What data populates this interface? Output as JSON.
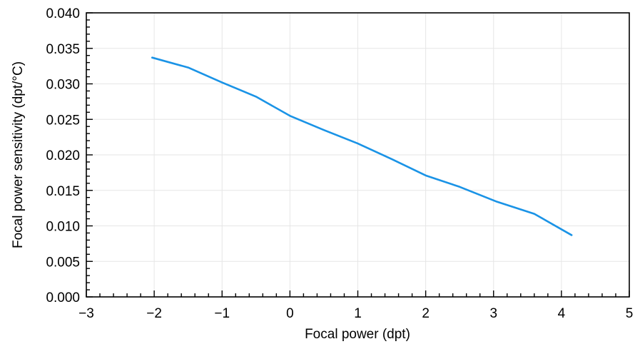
{
  "chart_data": {
    "type": "line",
    "xlabel": "Focal power (dpt)",
    "ylabel": "Focal power sensitivity (dpt/°C)",
    "xlim": [
      -3,
      5
    ],
    "ylim": [
      0,
      0.04
    ],
    "x_ticks": [
      -3,
      -2,
      -1,
      0,
      1,
      2,
      3,
      4,
      5
    ],
    "x_tick_labels": [
      "−3",
      "−2",
      "−1",
      "0",
      "1",
      "2",
      "3",
      "4",
      "5"
    ],
    "y_ticks": [
      0,
      0.005,
      0.01,
      0.015,
      0.02,
      0.025,
      0.03,
      0.035,
      0.04
    ],
    "y_tick_labels": [
      "0.000",
      "0.005",
      "0.010",
      "0.015",
      "0.020",
      "0.025",
      "0.030",
      "0.035",
      "0.040"
    ],
    "x_minor_step": 0.2,
    "y_minor_step": 0.001,
    "grid": true,
    "series": [
      {
        "color": "#1a93e6",
        "x": [
          -2.03,
          -1.5,
          -1.0,
          -0.5,
          0.0,
          0.5,
          1.0,
          1.5,
          2.0,
          2.5,
          3.05,
          3.6,
          4.15
        ],
        "y": [
          0.0337,
          0.0323,
          0.0302,
          0.0282,
          0.0255,
          0.0235,
          0.0216,
          0.0194,
          0.0171,
          0.0155,
          0.0134,
          0.0117,
          0.0087
        ]
      }
    ]
  }
}
